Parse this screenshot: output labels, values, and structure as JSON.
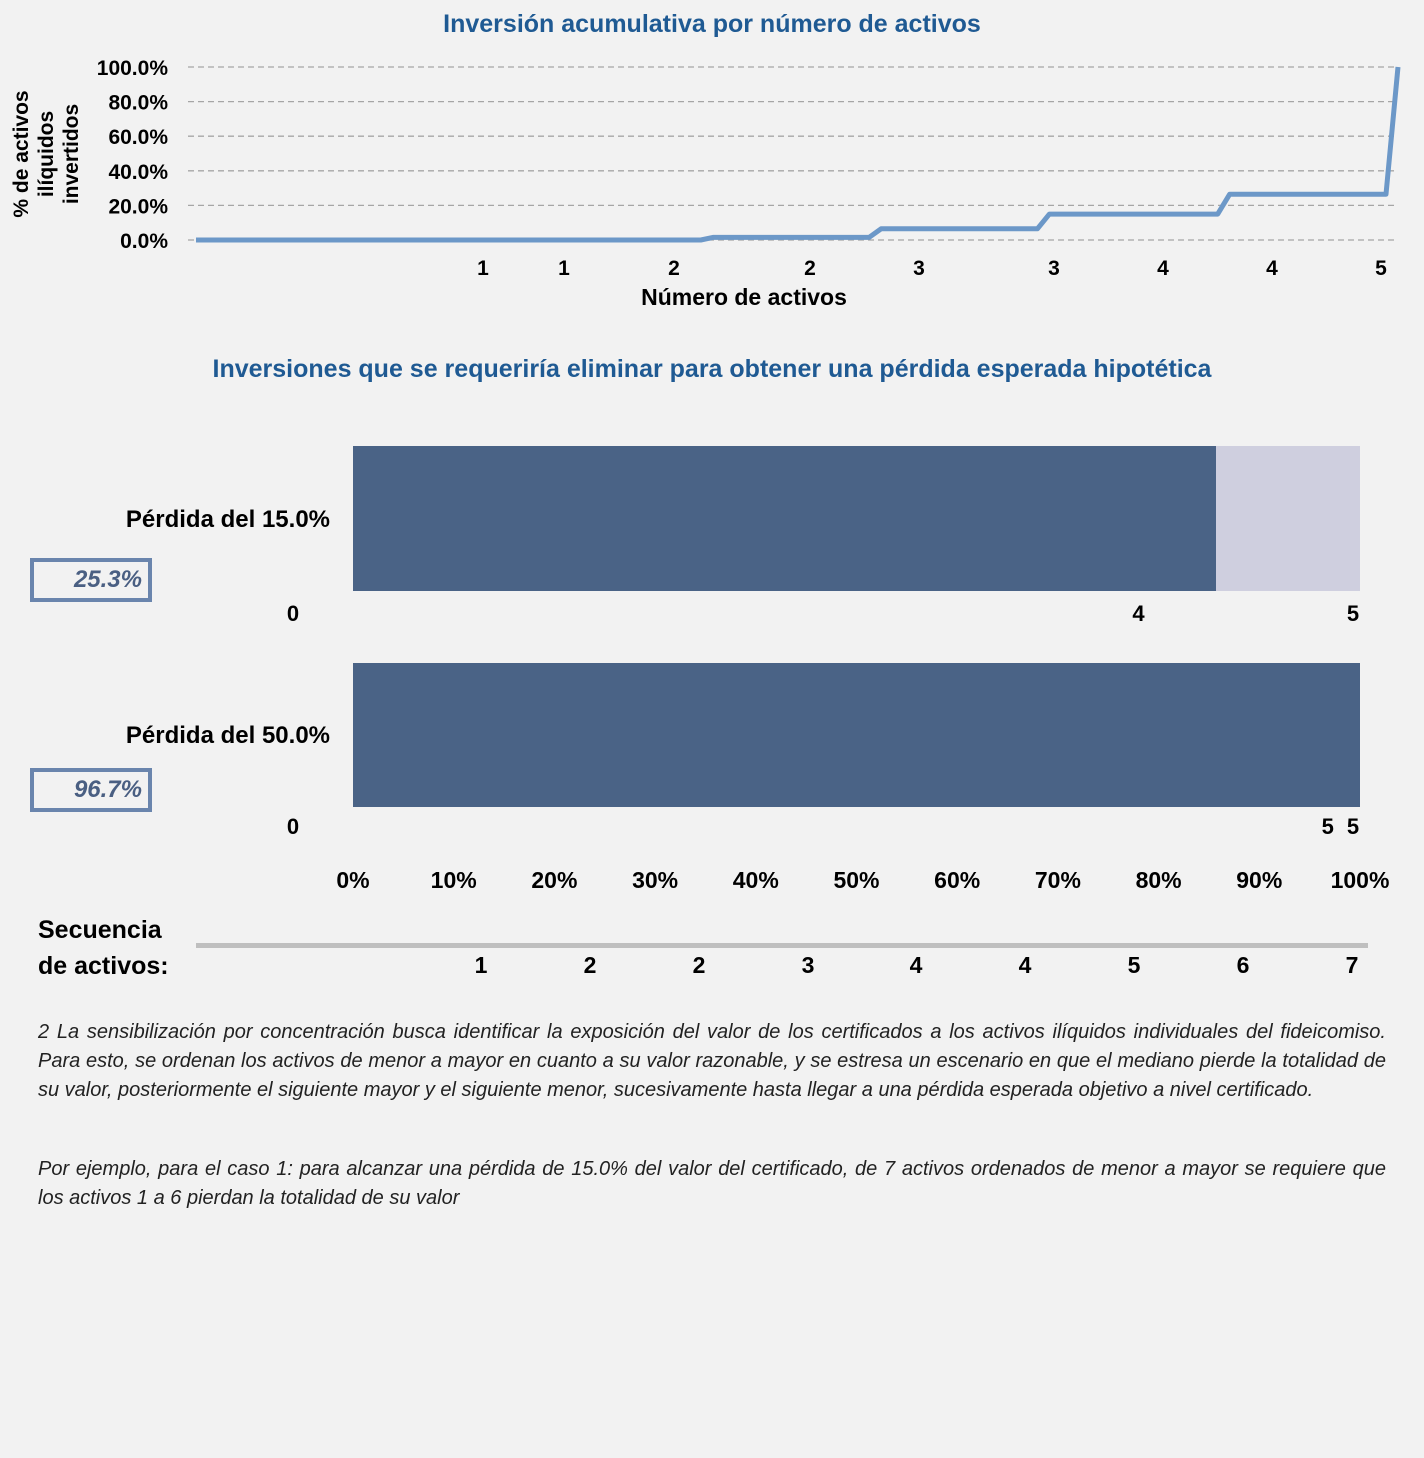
{
  "chart_data": [
    {
      "type": "line",
      "title": "Inversión acumulativa por número de activos",
      "xlabel": "Número de activos",
      "ylabel": "% de activos ilíquidos invertidos",
      "x_tick_labels": [
        "1",
        "1",
        "2",
        "2",
        "3",
        "3",
        "4",
        "4",
        "5"
      ],
      "y_tick_labels": [
        "0.0%",
        "20.0%",
        "40.0%",
        "60.0%",
        "80.0%",
        "100.0%"
      ],
      "ylim": [
        0,
        100
      ],
      "grid": "horizontal dashed",
      "series": [
        {
          "color": "#6c98c8",
          "points": [
            {
              "x": 0,
              "y": 0
            },
            {
              "x": 0.42,
              "y": 0
            },
            {
              "x": 0.43,
              "y": 1.5
            },
            {
              "x": 0.56,
              "y": 1.5
            },
            {
              "x": 0.57,
              "y": 6.5
            },
            {
              "x": 0.7,
              "y": 6.5
            },
            {
              "x": 0.71,
              "y": 15
            },
            {
              "x": 0.85,
              "y": 15
            },
            {
              "x": 0.86,
              "y": 26.5
            },
            {
              "x": 0.99,
              "y": 26.5
            },
            {
              "x": 1.0,
              "y": 100
            }
          ]
        }
      ]
    },
    {
      "type": "bar",
      "orientation": "horizontal",
      "stacked": true,
      "title": "Inversiones que se requeriría eliminar para obtener una pérdida esperada hipotética",
      "x_tick_labels": [
        "0%",
        "10%",
        "20%",
        "30%",
        "40%",
        "50%",
        "60%",
        "70%",
        "80%",
        "90%",
        "100%"
      ],
      "xlim": [
        0,
        100
      ],
      "categories": [
        "Pérdida del 15.0%",
        "Pérdida del 50.0%"
      ],
      "highlight": [
        "25.3%",
        "96.7%"
      ],
      "segments": [
        {
          "values": [
            85.7,
            100
          ],
          "color": "#4a6386"
        },
        {
          "values": [
            14.3,
            0
          ],
          "color": "#cfcfdf"
        }
      ],
      "segment_end_labels": [
        {
          "start": "0",
          "ends": [
            {
              "label": "4",
              "at": 78.0
            },
            {
              "label": "5",
              "at": 99.3
            }
          ]
        },
        {
          "start": "0",
          "ends": [
            {
              "label": "5",
              "at": 96.8
            },
            {
              "label": "5",
              "at": 99.3
            }
          ]
        }
      ]
    }
  ],
  "sequence": {
    "title_line1": "Secuencia",
    "title_line2": "de activos:",
    "values": [
      "1",
      "2",
      "2",
      "3",
      "4",
      "4",
      "5",
      "6",
      "7"
    ]
  },
  "notes": {
    "p1": "2 La sensibilización por concentración busca identificar la exposición del valor de los certificados a los activos ilíquidos individuales del fideicomiso. Para esto, se ordenan los activos de menor a mayor en cuanto a su valor razonable, y se estresa un escenario en que el mediano pierde la totalidad de su valor, posteriormente el siguiente mayor y el siguiente menor, sucesivamente hasta llegar a una pérdida esperada objetivo a nivel certificado.",
    "p2": "Por ejemplo, para el caso 1: para alcanzar una pérdida de 15.0% del valor del certificado, de 7 activos ordenados de menor a mayor se requiere que los activos 1 a 6 pierdan la totalidad de su valor"
  }
}
